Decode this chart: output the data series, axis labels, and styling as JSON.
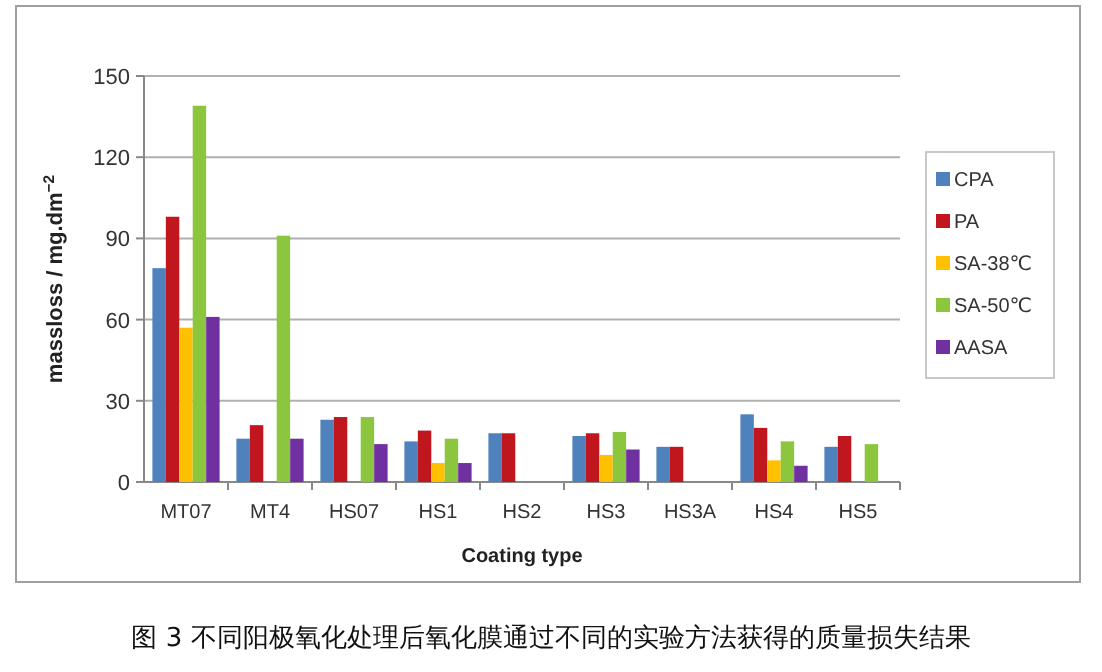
{
  "chart_data": {
    "type": "bar",
    "xlabel": "Coating type",
    "ylabel": "massloss / mg.dm$^{−2}$",
    "categories": [
      "MT07",
      "MT4",
      "HS07",
      "HS1",
      "HS2",
      "HS3",
      "HS3A",
      "HS4",
      "HS5"
    ],
    "series": [
      {
        "name": "CPA",
        "color": "#4f81bd",
        "values": [
          79,
          16,
          23,
          15,
          18,
          17,
          13,
          25,
          13
        ]
      },
      {
        "name": "PA",
        "color": "#c0161e",
        "values": [
          98,
          21,
          24,
          19,
          18,
          18,
          13,
          20,
          17
        ]
      },
      {
        "name": "SA-38℃",
        "color": "#ffc000",
        "values": [
          57,
          null,
          null,
          7,
          null,
          10,
          null,
          8,
          null
        ]
      },
      {
        "name": "SA-50℃",
        "color": "#8cc63f",
        "values": [
          139,
          91,
          24,
          16,
          null,
          18.5,
          null,
          15,
          14
        ]
      },
      {
        "name": "AASA",
        "color": "#7030a0",
        "values": [
          61,
          16,
          14,
          7,
          null,
          12,
          null,
          6,
          null
        ]
      }
    ],
    "ylim": [
      0,
      150
    ],
    "yticks": [
      0,
      30,
      60,
      90,
      120,
      150
    ],
    "grid": "y",
    "legend": "right",
    "annotations": [
      "图 3  不同阳极氧化处理后氧化膜通过不同的实验方法获得的质量损失结果"
    ]
  }
}
